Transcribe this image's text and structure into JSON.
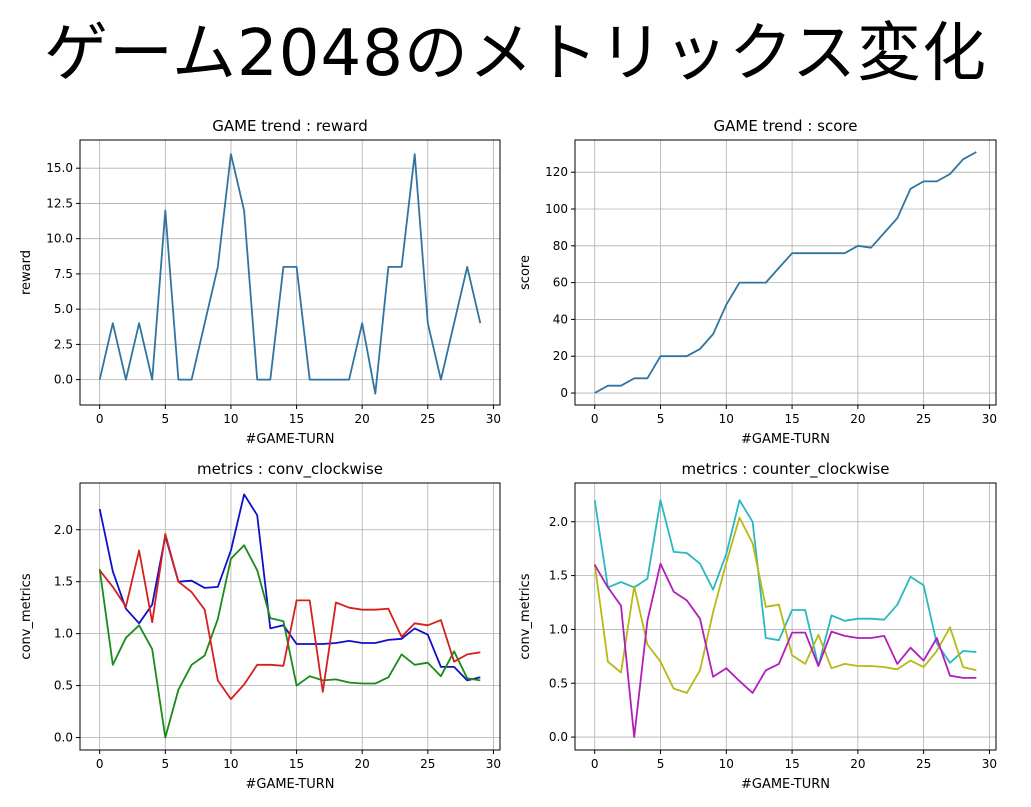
{
  "page": {
    "title": "ゲーム2048のメトリックス変化"
  },
  "chart_data": [
    {
      "type": "line",
      "title": "GAME trend : reward",
      "xlabel": "#GAME-TURN",
      "ylabel": "reward",
      "xlim": [
        -1.5,
        30.5
      ],
      "ylim": [
        -1.8,
        17.0
      ],
      "xticks": [
        0,
        5,
        10,
        15,
        20,
        25,
        30
      ],
      "xtick_labels": [
        "0",
        "5",
        "10",
        "15",
        "20",
        "25",
        "30"
      ],
      "yticks": [
        0,
        2.5,
        5,
        7.5,
        10,
        12.5,
        15
      ],
      "ytick_labels": [
        "0.0",
        "2.5",
        "5.0",
        "7.5",
        "10.0",
        "12.5",
        "15.0"
      ],
      "grid": true,
      "x": [
        0,
        1,
        2,
        3,
        4,
        5,
        6,
        7,
        8,
        9,
        10,
        11,
        12,
        13,
        14,
        15,
        16,
        17,
        18,
        19,
        20,
        21,
        22,
        23,
        24,
        25,
        26,
        27,
        28,
        29
      ],
      "series": [
        {
          "color": "#3274a1",
          "values": [
            0,
            4,
            0,
            4,
            0,
            12,
            0,
            0,
            4,
            8,
            16,
            12,
            0,
            0,
            8,
            8,
            0,
            0,
            0,
            0,
            4,
            -1,
            8,
            8,
            16,
            4,
            0,
            4,
            8,
            4
          ]
        }
      ]
    },
    {
      "type": "line",
      "title": "GAME trend : score",
      "xlabel": "#GAME-TURN",
      "ylabel": "score",
      "xlim": [
        -1.5,
        30.5
      ],
      "ylim": [
        -6.5,
        137.5
      ],
      "xticks": [
        0,
        5,
        10,
        15,
        20,
        25,
        30
      ],
      "xtick_labels": [
        "0",
        "5",
        "10",
        "15",
        "20",
        "25",
        "30"
      ],
      "yticks": [
        0,
        20,
        40,
        60,
        80,
        100,
        120
      ],
      "ytick_labels": [
        "0",
        "20",
        "40",
        "60",
        "80",
        "100",
        "120"
      ],
      "grid": true,
      "x": [
        0,
        1,
        2,
        3,
        4,
        5,
        6,
        7,
        8,
        9,
        10,
        11,
        12,
        13,
        14,
        15,
        16,
        17,
        18,
        19,
        20,
        21,
        22,
        23,
        24,
        25,
        26,
        27,
        28,
        29
      ],
      "series": [
        {
          "color": "#3274a1",
          "values": [
            0,
            4,
            4,
            8,
            8,
            20,
            20,
            20,
            24,
            32,
            48,
            60,
            60,
            60,
            68,
            76,
            76,
            76,
            76,
            76,
            80,
            79,
            87,
            95,
            111,
            115,
            115,
            119,
            127,
            131
          ]
        }
      ]
    },
    {
      "type": "line",
      "title": "metrics : conv_clockwise",
      "xlabel": "#GAME-TURN",
      "ylabel": "conv_metrics",
      "xlim": [
        -1.5,
        30.5
      ],
      "ylim": [
        -0.12,
        2.45
      ],
      "xticks": [
        0,
        5,
        10,
        15,
        20,
        25,
        30
      ],
      "xtick_labels": [
        "0",
        "5",
        "10",
        "15",
        "20",
        "25",
        "30"
      ],
      "yticks": [
        0,
        0.5,
        1.0,
        1.5,
        2.0
      ],
      "ytick_labels": [
        "0.0",
        "0.5",
        "1.0",
        "1.5",
        "2.0"
      ],
      "grid": true,
      "x": [
        0,
        1,
        2,
        3,
        4,
        5,
        6,
        7,
        8,
        9,
        10,
        11,
        12,
        13,
        14,
        15,
        16,
        17,
        18,
        19,
        20,
        21,
        22,
        23,
        24,
        25,
        26,
        27,
        28,
        29
      ],
      "series": [
        {
          "color": "#1010c8",
          "values": [
            2.2,
            1.6,
            1.24,
            1.1,
            1.28,
            1.94,
            1.5,
            1.51,
            1.44,
            1.45,
            1.8,
            2.34,
            2.14,
            1.05,
            1.08,
            0.9,
            0.9,
            0.9,
            0.91,
            0.93,
            0.91,
            0.91,
            0.94,
            0.95,
            1.05,
            0.99,
            0.68,
            0.68,
            0.55,
            0.58
          ]
        },
        {
          "color": "#1a8a1a",
          "values": [
            1.62,
            0.7,
            0.96,
            1.08,
            0.85,
            0.0,
            0.46,
            0.7,
            0.79,
            1.14,
            1.72,
            1.85,
            1.61,
            1.15,
            1.12,
            0.5,
            0.59,
            0.55,
            0.56,
            0.53,
            0.52,
            0.52,
            0.58,
            0.8,
            0.7,
            0.72,
            0.59,
            0.83,
            0.57,
            0.55
          ]
        },
        {
          "color": "#d62020",
          "values": [
            1.61,
            1.45,
            1.26,
            1.8,
            1.11,
            1.96,
            1.5,
            1.4,
            1.23,
            0.55,
            0.37,
            0.51,
            0.7,
            0.7,
            0.69,
            1.32,
            1.32,
            0.44,
            1.3,
            1.25,
            1.23,
            1.23,
            1.24,
            0.97,
            1.1,
            1.08,
            1.13,
            0.73,
            0.8,
            0.82
          ]
        }
      ]
    },
    {
      "type": "line",
      "title": "metrics : counter_clockwise",
      "xlabel": "#GAME-TURN",
      "ylabel": "conv_metrics",
      "xlim": [
        -1.5,
        30.5
      ],
      "ylim": [
        -0.12,
        2.36
      ],
      "xticks": [
        0,
        5,
        10,
        15,
        20,
        25,
        30
      ],
      "xtick_labels": [
        "0",
        "5",
        "10",
        "15",
        "20",
        "25",
        "30"
      ],
      "yticks": [
        0,
        0.5,
        1.0,
        1.5,
        2.0
      ],
      "ytick_labels": [
        "0.0",
        "0.5",
        "1.0",
        "1.5",
        "2.0"
      ],
      "grid": true,
      "x": [
        0,
        1,
        2,
        3,
        4,
        5,
        6,
        7,
        8,
        9,
        10,
        11,
        12,
        13,
        14,
        15,
        16,
        17,
        18,
        19,
        20,
        21,
        22,
        23,
        24,
        25,
        26,
        27,
        28,
        29
      ],
      "series": [
        {
          "color": "#2ab8c0",
          "values": [
            2.2,
            1.39,
            1.44,
            1.39,
            1.47,
            2.2,
            1.72,
            1.71,
            1.61,
            1.37,
            1.7,
            2.2,
            2.0,
            0.92,
            0.9,
            1.18,
            1.18,
            0.66,
            1.13,
            1.08,
            1.1,
            1.1,
            1.09,
            1.23,
            1.49,
            1.41,
            0.87,
            0.69,
            0.8,
            0.79
          ]
        },
        {
          "color": "#b8b816",
          "values": [
            1.61,
            0.7,
            0.6,
            1.4,
            0.86,
            0.7,
            0.45,
            0.41,
            0.62,
            1.16,
            1.62,
            2.04,
            1.8,
            1.21,
            1.23,
            0.76,
            0.68,
            0.95,
            0.64,
            0.68,
            0.66,
            0.66,
            0.65,
            0.63,
            0.71,
            0.65,
            0.8,
            1.02,
            0.65,
            0.62
          ]
        },
        {
          "color": "#b020b8",
          "values": [
            1.6,
            1.39,
            1.22,
            0.0,
            1.08,
            1.61,
            1.35,
            1.27,
            1.1,
            0.56,
            0.64,
            0.52,
            0.41,
            0.62,
            0.68,
            0.97,
            0.97,
            0.66,
            0.98,
            0.94,
            0.92,
            0.92,
            0.94,
            0.68,
            0.83,
            0.71,
            0.92,
            0.57,
            0.55,
            0.55
          ]
        }
      ]
    }
  ]
}
